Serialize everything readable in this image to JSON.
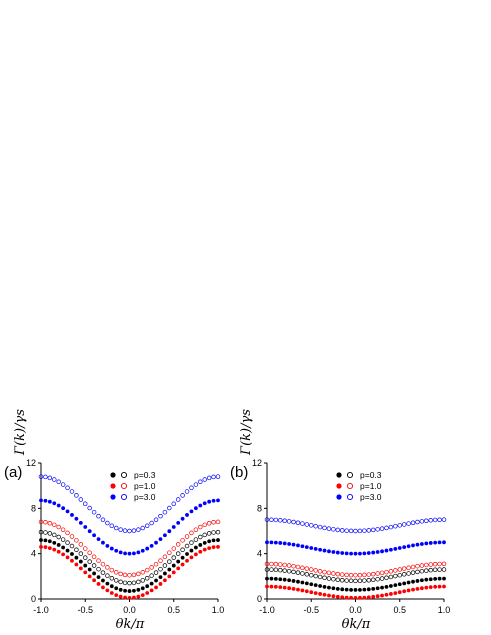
{
  "colors": {
    "p03": "#000000",
    "p10": "#ff0000",
    "p30": "#0000ff"
  },
  "chart_data": [
    {
      "type": "scatter",
      "panel_label": "(a)",
      "xlabel": "θk/π",
      "ylabel": "Γ(k)/γs",
      "xlim": [
        -1.0,
        1.0
      ],
      "ylim": [
        0,
        12
      ],
      "xticks": [
        "-1.0",
        "-0.5",
        "0.0",
        "0.5",
        "1.0"
      ],
      "yticks": [
        "0",
        "4",
        "8",
        "12"
      ],
      "legend": {
        "placement": "top-center",
        "entries": [
          "p=0.3",
          "p=1.0",
          "p=3.0"
        ]
      },
      "series": [
        {
          "name": "p=0.3",
          "marker": "open",
          "color": "#000000",
          "max": 5.9,
          "min": 1.4
        },
        {
          "name": "p=0.3",
          "marker": "filled",
          "color": "#000000",
          "max": 5.2,
          "min": 0.7
        },
        {
          "name": "p=1.0",
          "marker": "open",
          "color": "#ff0000",
          "max": 6.8,
          "min": 2.1
        },
        {
          "name": "p=1.0",
          "marker": "filled",
          "color": "#ff0000",
          "max": 4.6,
          "min": 0.1
        },
        {
          "name": "p=3.0",
          "marker": "open",
          "color": "#0000ff",
          "max": 10.8,
          "min": 6.0
        },
        {
          "name": "p=3.0",
          "marker": "filled",
          "color": "#0000ff",
          "max": 8.7,
          "min": 4.0
        }
      ]
    },
    {
      "type": "scatter",
      "panel_label": "(b)",
      "xlabel": "θk/π",
      "ylabel": "Γ(k)/γs",
      "xlim": [
        -1.0,
        1.0
      ],
      "ylim": [
        0,
        12
      ],
      "xticks": [
        "-1.0",
        "-0.5",
        "0.0",
        "0.5",
        "1.0"
      ],
      "yticks": [
        "0",
        "4",
        "8",
        "12"
      ],
      "legend": {
        "placement": "top-center",
        "entries": [
          "p=0.3",
          "p=1.0",
          "p=3.0"
        ]
      },
      "series": [
        {
          "name": "p=0.3",
          "marker": "open",
          "color": "#000000",
          "max": 2.6,
          "min": 1.6
        },
        {
          "name": "p=0.3",
          "marker": "filled",
          "color": "#000000",
          "max": 1.8,
          "min": 0.8
        },
        {
          "name": "p=1.0",
          "marker": "open",
          "color": "#ff0000",
          "max": 3.1,
          "min": 2.1
        },
        {
          "name": "p=1.0",
          "marker": "filled",
          "color": "#ff0000",
          "max": 1.1,
          "min": 0.1
        },
        {
          "name": "p=3.0",
          "marker": "open",
          "color": "#0000ff",
          "max": 7.0,
          "min": 6.0
        },
        {
          "name": "p=3.0",
          "marker": "filled",
          "color": "#0000ff",
          "max": 5.0,
          "min": 4.0
        }
      ]
    }
  ]
}
